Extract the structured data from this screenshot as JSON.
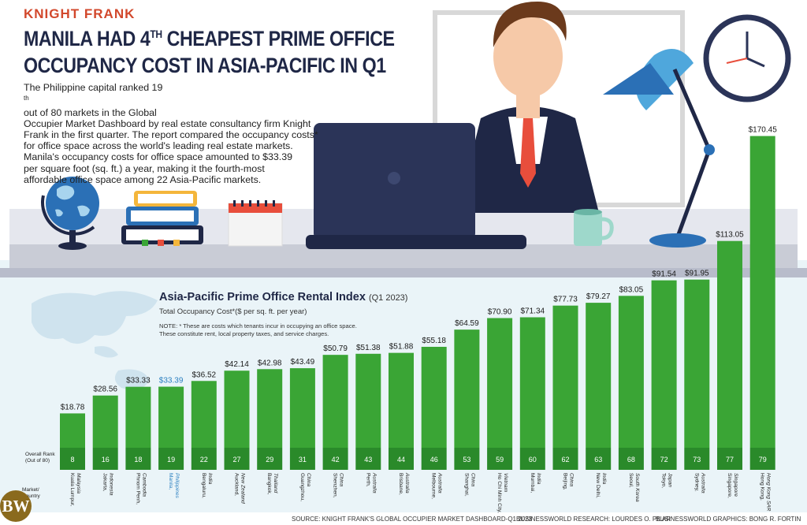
{
  "header": {
    "kicker": "KNIGHT FRANK",
    "headline_1": "MANILA HAD 4",
    "headline_sup": "TH",
    "headline_1b": " CHEAPEST PRIME OFFICE",
    "headline_2": "OCCUPANCY COST IN ASIA-PACIFIC IN Q1"
  },
  "intro": {
    "l1a": "The Philippine capital ranked 19",
    "l1sup": "th",
    "l1b": " out of 80 markets in the Global",
    "l2": "Occupier Market Dashboard by real estate consultancy firm Knight",
    "l3": "Frank in the first quarter. The report compared the occupancy costs*",
    "l4": "for office space across the world's leading real estate markets.",
    "l5": "Manila's occupancy costs for office space amounted to $33.39",
    "l6": "per square foot (sq. ft.) a year, making it the fourth-most",
    "l7": "affordable office space among 22 Asia-Pacific markets."
  },
  "colors": {
    "bar": "#3aa535",
    "bar_dark": "#2a8a2a",
    "highlight": "#2b7fc0",
    "headline": "#1f2746",
    "kicker": "#d2482c"
  },
  "chart_data": {
    "type": "bar",
    "title": "Asia-Pacific Prime Office Rental Index",
    "title_sub": "(Q1 2023)",
    "ylabel": "Total Occupancy Cost*($ per sq. ft. per year)",
    "note": "NOTE: * These are costs which tenants incur in occupying an office space. These constitute rent, local property taxes, and service charges.",
    "rank_label_1": "Overall Rank",
    "rank_label_2": "(Out of 80)",
    "country_label_1": "Market/",
    "country_label_2": "Country",
    "ylim": [
      0,
      175
    ],
    "highlight_index": 3,
    "categories": [
      {
        "city": "Kuala Lumpur,",
        "country": "Malaysia"
      },
      {
        "city": "Jakarta,",
        "country": "Indonesia"
      },
      {
        "city": "Phnom Penh,",
        "country": "Cambodia"
      },
      {
        "city": "Manila,",
        "country": "Philippines"
      },
      {
        "city": "Bengaluru,",
        "country": "India"
      },
      {
        "city": "Auckland,",
        "country": "New Zealand"
      },
      {
        "city": "Bangkok,",
        "country": "Thailand"
      },
      {
        "city": "Guangzhou,",
        "country": "China"
      },
      {
        "city": "Shenzhen,",
        "country": "China"
      },
      {
        "city": "Perth,",
        "country": "Australia"
      },
      {
        "city": "Brisbane,",
        "country": "Australia"
      },
      {
        "city": "Melbourne,",
        "country": "Australia"
      },
      {
        "city": "Shanghai,",
        "country": "China"
      },
      {
        "city": "Ho Chi Minh City,",
        "country": "Vietnam"
      },
      {
        "city": "Mumbai,",
        "country": "India"
      },
      {
        "city": "Beijing,",
        "country": "China"
      },
      {
        "city": "New Delhi,",
        "country": "India"
      },
      {
        "city": "Seoul,",
        "country": "South Korea"
      },
      {
        "city": "Tokyo,",
        "country": "Japan"
      },
      {
        "city": "Sydney,",
        "country": "Australia"
      },
      {
        "city": "Singapore,",
        "country": "Singapore"
      },
      {
        "city": "Hong Kong,",
        "country": "Hong Kong SAR"
      }
    ],
    "values": [
      18.78,
      28.56,
      33.33,
      33.39,
      36.52,
      42.14,
      42.98,
      43.49,
      50.79,
      51.38,
      51.88,
      55.18,
      64.59,
      70.9,
      71.34,
      77.73,
      79.27,
      83.05,
      91.54,
      91.95,
      113.05,
      170.45
    ],
    "value_labels": [
      "$18.78",
      "$28.56",
      "$33.33",
      "$33.39",
      "$36.52",
      "$42.14",
      "$42.98",
      "$43.49",
      "$50.79",
      "$51.38",
      "$51.88",
      "$55.18",
      "$64.59",
      "$70.90",
      "$71.34",
      "$77.73",
      "$79.27",
      "$83.05",
      "$91.54",
      "$91.95",
      "$113.05",
      "$170.45"
    ],
    "ranks": [
      "8",
      "16",
      "18",
      "19",
      "22",
      "27",
      "29",
      "31",
      "42",
      "43",
      "44",
      "46",
      "53",
      "59",
      "60",
      "62",
      "63",
      "68",
      "72",
      "73",
      "77",
      "79"
    ]
  },
  "footer": {
    "source": "SOURCE: KNIGHT FRANK'S GLOBAL OCCUPIER MARKET DASHBOARD-Q1 2023",
    "research": "BUSINESSWORLD RESEARCH: LOURDES O. PILAR",
    "graphics": "BUSINESSWORLD GRAPHICS: BONG R. FORTIN",
    "logo": "BW"
  }
}
